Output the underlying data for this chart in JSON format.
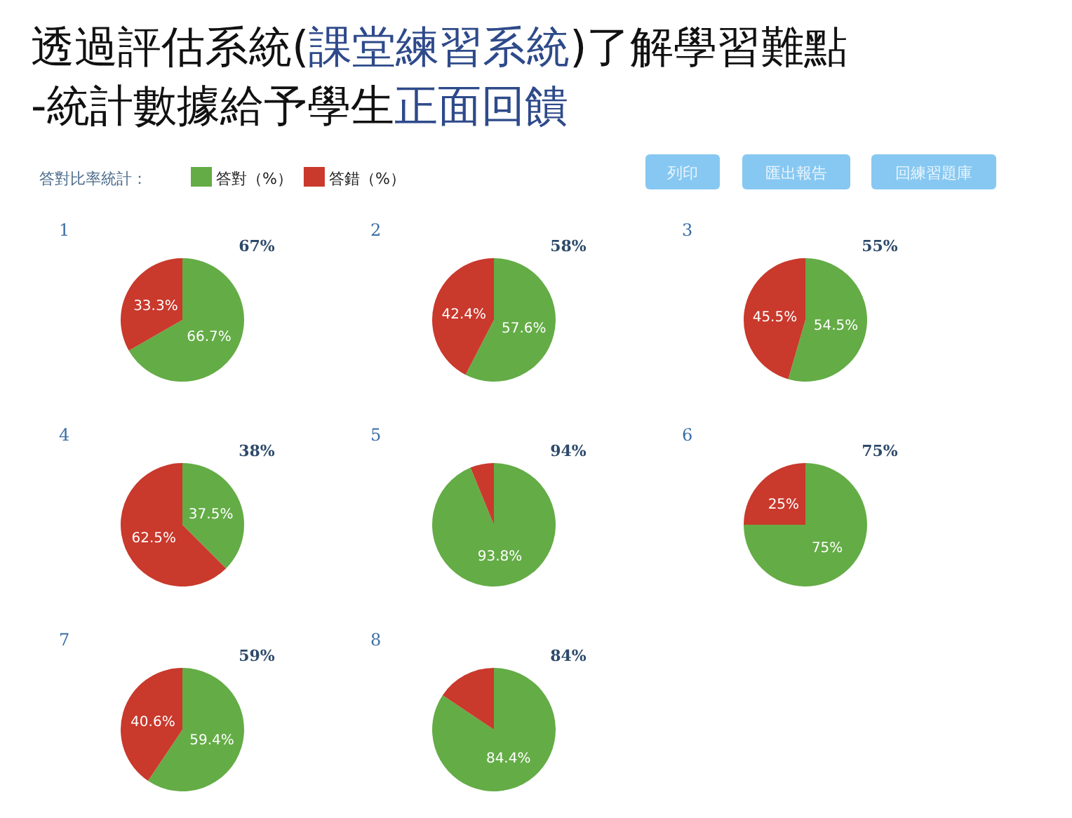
{
  "chart_data": [
    {
      "type": "other",
      "title": "透過評估系統(課堂練習系統)了解學習難點",
      "subtitle": "-統計數據給予學生正面回饋",
      "annotations": [
        "答對比率統計：",
        "列印",
        "匯出報告",
        "回練習題庫"
      ]
    },
    {
      "type": "pie",
      "title": "1",
      "subtitle": "67%",
      "categories": [
        "答對（%）",
        "答錯（%）"
      ],
      "values": [
        66.7,
        33.3
      ],
      "colors": [
        "#64ac46",
        "#c9392c"
      ],
      "value_labels": [
        "66.7%",
        "33.3%"
      ],
      "legend": "top right"
    },
    {
      "type": "pie",
      "title": "2",
      "subtitle": "58%",
      "categories": [
        null,
        null
      ],
      "values": [
        57.6,
        42.4
      ],
      "colors": [
        "#64ac46",
        "#c9392c"
      ],
      "value_labels": [
        "57.6%",
        "42.4%"
      ]
    },
    {
      "type": "pie",
      "title": "3",
      "subtitle": "55%",
      "categories": [
        null,
        null
      ],
      "values": [
        54.5,
        45.5
      ],
      "colors": [
        "#64ac46",
        "#c9392c"
      ],
      "value_labels": [
        "54.5%",
        "45.5%"
      ]
    },
    {
      "type": "pie",
      "title": "4",
      "subtitle": "38%",
      "categories": [
        null,
        null
      ],
      "values": [
        37.5,
        62.5
      ],
      "colors": [
        "#64ac46",
        "#c9392c"
      ],
      "value_labels": [
        "37.5%",
        "62.5%"
      ]
    },
    {
      "type": "pie",
      "title": "5",
      "subtitle": "94%",
      "categories": [
        null,
        null
      ],
      "values": [
        93.8,
        6.2
      ],
      "colors": [
        "#64ac46",
        "#c9392c"
      ],
      "value_labels": [
        "93.8%",
        null
      ]
    },
    {
      "type": "pie",
      "title": "6",
      "subtitle": "75%",
      "categories": [
        null,
        null
      ],
      "values": [
        75,
        25
      ],
      "colors": [
        "#64ac46",
        "#c9392c"
      ],
      "value_labels": [
        "75%",
        "25%"
      ]
    },
    {
      "type": "pie",
      "title": "7",
      "subtitle": "59%",
      "categories": [
        null,
        null
      ],
      "values": [
        59.4,
        40.6
      ],
      "colors": [
        "#64ac46",
        "#c9392c"
      ],
      "value_labels": [
        "59.4%",
        "40.6%"
      ]
    },
    {
      "type": "pie",
      "title": "8",
      "subtitle": "84%",
      "categories": [
        null,
        null
      ],
      "values": [
        84.4,
        15.6
      ],
      "colors": [
        "#64ac46",
        "#c9392c"
      ],
      "value_labels": [
        "84.4%",
        null
      ]
    }
  ]
}
